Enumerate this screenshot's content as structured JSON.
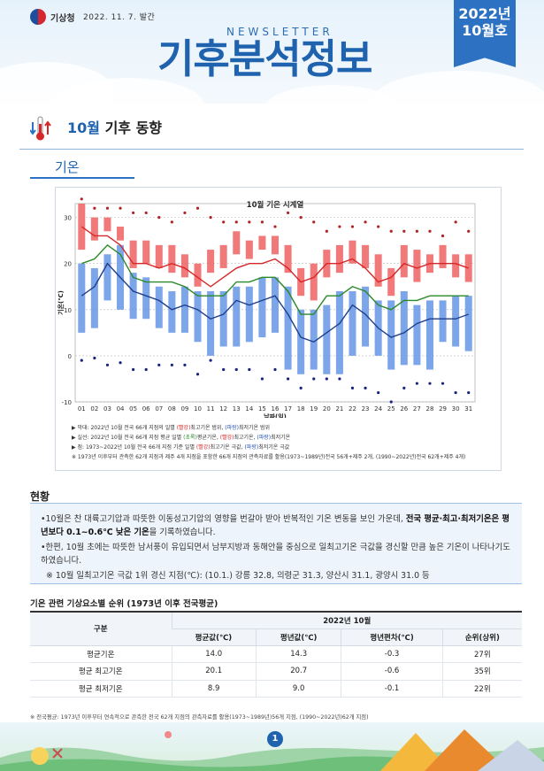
{
  "header": {
    "org": "기상청",
    "issue_date": "2022. 11. 7. 발간",
    "newsletter_label": "NEWSLETTER",
    "title_part1": "기후분석",
    "title_part2": "정보",
    "ribbon_year": "2022년",
    "ribbon_month": "10월호"
  },
  "section": {
    "title_highlight": "10월",
    "title_rest": " 기후 동향",
    "subtitle": "기온"
  },
  "chart_data": {
    "type": "bar-line",
    "title": "10월 기온 시계열",
    "xlabel": "날짜(일)",
    "ylabel": "기온(℃)",
    "ylim": [
      -10,
      33
    ],
    "yticks": [
      -10,
      0,
      10,
      20,
      30
    ],
    "categories": [
      "01",
      "02",
      "03",
      "04",
      "05",
      "06",
      "07",
      "08",
      "09",
      "10",
      "11",
      "12",
      "13",
      "14",
      "15",
      "16",
      "17",
      "18",
      "19",
      "20",
      "21",
      "22",
      "23",
      "24",
      "25",
      "26",
      "27",
      "28",
      "29",
      "30",
      "31"
    ],
    "max_range": {
      "low": [
        23,
        25,
        27,
        25,
        19,
        20,
        19,
        18,
        17,
        15,
        18,
        19,
        22,
        21,
        23,
        22,
        18,
        13,
        12,
        17,
        18,
        20,
        19,
        15,
        13,
        17,
        16,
        18,
        19,
        17,
        16
      ],
      "high": [
        33,
        30,
        30,
        28,
        25,
        25,
        24,
        24,
        22,
        20,
        23,
        24,
        27,
        25,
        26,
        26,
        24,
        19,
        20,
        23,
        24,
        25,
        24,
        22,
        19,
        24,
        23,
        22,
        24,
        22,
        22
      ]
    },
    "min_range": {
      "low": [
        5,
        6,
        12,
        10,
        8,
        8,
        6,
        5,
        5,
        3,
        0,
        2,
        2,
        3,
        4,
        5,
        -3,
        -4,
        -3,
        -4,
        -4,
        0,
        2,
        0,
        -3,
        -2,
        -2,
        -3,
        3,
        2,
        1
      ],
      "high": [
        20,
        19,
        22,
        24,
        18,
        17,
        15,
        14,
        15,
        14,
        14,
        14,
        15,
        15,
        17,
        17,
        15,
        10,
        10,
        11,
        14,
        14,
        15,
        12,
        12,
        14,
        11,
        12,
        12,
        13,
        13
      ]
    },
    "series": [
      {
        "name": "최고기온",
        "color": "#d62728",
        "values": [
          28,
          26,
          26,
          24,
          20,
          20,
          19,
          20,
          19,
          17,
          15,
          17,
          19,
          20,
          20,
          21,
          19,
          16,
          17,
          20,
          20,
          21,
          19,
          16,
          17,
          20,
          19,
          20,
          20,
          20,
          19
        ]
      },
      {
        "name": "평균기온",
        "color": "#2a8a2a",
        "values": [
          20,
          21,
          24,
          22,
          17,
          16,
          16,
          16,
          15,
          13,
          13,
          13,
          16,
          16,
          17,
          17,
          14,
          9,
          9,
          13,
          13,
          15,
          14,
          11,
          10,
          12,
          12,
          13,
          13,
          13,
          13
        ]
      },
      {
        "name": "최저기온",
        "color": "#1f3f8c",
        "values": [
          13,
          15,
          20,
          17,
          14,
          13,
          12,
          10,
          11,
          10,
          8,
          9,
          12,
          11,
          12,
          13,
          9,
          4,
          3,
          5,
          7,
          11,
          9,
          6,
          4,
          5,
          7,
          8,
          8,
          8,
          9
        ]
      }
    ],
    "record_high": [
      34,
      32,
      32,
      32,
      31,
      31,
      30,
      29,
      31,
      32,
      30,
      29,
      29,
      29,
      29,
      28,
      31,
      30,
      29,
      27,
      28,
      28,
      29,
      28,
      27,
      27,
      27,
      27,
      26,
      29,
      27
    ],
    "record_low": [
      -1,
      -0.5,
      -2,
      -1.5,
      -3,
      -3,
      -2,
      -2,
      -2,
      -4,
      -1,
      -3,
      -3,
      -3,
      -5,
      -3,
      -5,
      -7,
      -5,
      -5,
      -5,
      -7,
      -7,
      -8,
      -10,
      -7,
      -6,
      -6,
      -6,
      -8,
      -8
    ],
    "notes": {
      "n1_prefix": "▶ 막대: 2022년 10월 전국 66개 지점의 일별 ",
      "n1_red": "(빨강)",
      "n1_mid": "최고기온 범위, ",
      "n1_blue": "(파랑)",
      "n1_end": "최저기온 범위",
      "n2_prefix": "▶ 실선: 2022년 10월 전국 66개 지점 평균 일별 ",
      "n2_green": "(초록)",
      "n2_mid1": "평균기온, ",
      "n2_red": "(빨강)",
      "n2_mid2": "최고기온, ",
      "n2_blue": "(파랑)",
      "n2_end": "최저기온",
      "n3_prefix": "▶ 점: 1973~2022년 10월 전국 66개 지점 기준 일별 ",
      "n3_red": "(빨강)",
      "n3_mid": "최고기온 극값, ",
      "n3_blue": "(파랑)",
      "n3_end": "최저기온 극값",
      "n4": "※ 1973년 이후부터 관측한 62개 지점과 제주 4개 지점을 포함한 66개 지점의 관측자료를 활용(1973~1989년)전국 56개+제주 2개, (1990~2022년)전국 62개+제주 4개)"
    }
  },
  "status": {
    "title": "현황",
    "p1_a": "•10월은 찬 대륙고기압과 따뜻한 이동성고기압의 영향을 번갈아 받아 반복적인 기온 변동을 보인 가운데,",
    "p1_b": "전국 평균·최고·최저기온은 평년보다 0.1~0.6℃ 낮은 기온",
    "p1_c": "을 기록하였습니다.",
    "p2": "•한편, 10월 초에는 따뜻한 남서풍이 유입되면서 남부지방과 동해안을 중심으로 일최고기온 극값을 경신할 만큼 높은 기온이 나타나기도 하였습니다.",
    "p3": "※ 10월 일최고기온 극값 1위 경신 지점(℃): (10.1.) 강릉 32.8, 의령군 31.3, 양산시 31.1, 광양시 31.0 등"
  },
  "table": {
    "title": "기온 관련 기상요소별 순위 (1973년 이후 전국평균)",
    "header_group": "구분",
    "header_period": "2022년 10월",
    "columns": [
      "평균값(℃)",
      "평년값(℃)",
      "평년편차(℃)",
      "순위(상위)"
    ],
    "rows": [
      {
        "label": "평균기온",
        "cells": [
          "14.0",
          "14.3",
          "-0.3",
          "27위"
        ]
      },
      {
        "label": "평균 최고기온",
        "cells": [
          "20.1",
          "20.7",
          "-0.6",
          "35위"
        ]
      },
      {
        "label": "평균 최저기온",
        "cells": [
          "8.9",
          "9.0",
          "-0.1",
          "22위"
        ]
      }
    ],
    "note": "※ 전국평균: 1973년 이후부터 연속적으로 관측한 전국 62개 지점의 관측자료를 활용(1973~1989년)56개 지점, (1990~2022년)62개 지점)"
  },
  "footer": {
    "page": "1"
  }
}
